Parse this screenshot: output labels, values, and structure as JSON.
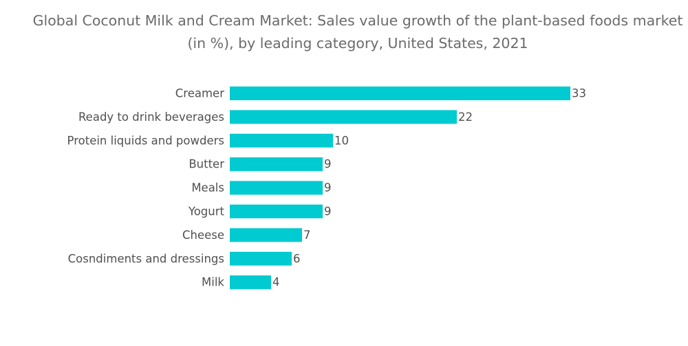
{
  "chart_data": {
    "type": "bar",
    "orientation": "horizontal",
    "title": "Global Coconut Milk and Cream Market: Sales value growth of the plant-based foods market (in %), by leading category, United States, 2021",
    "categories": [
      "Creamer",
      "Ready to drink beverages",
      "Protein liquids and powders",
      "Butter",
      "Meals",
      "Yogurt",
      "Cheese",
      "Cosndiments and dressings",
      "Milk"
    ],
    "values": [
      33,
      22,
      10,
      9,
      9,
      9,
      7,
      6,
      4
    ],
    "xlabel": "",
    "ylabel": "",
    "xlim": [
      0,
      33
    ],
    "grid": false,
    "legend": "none",
    "bar_color": "#00cbd0"
  }
}
